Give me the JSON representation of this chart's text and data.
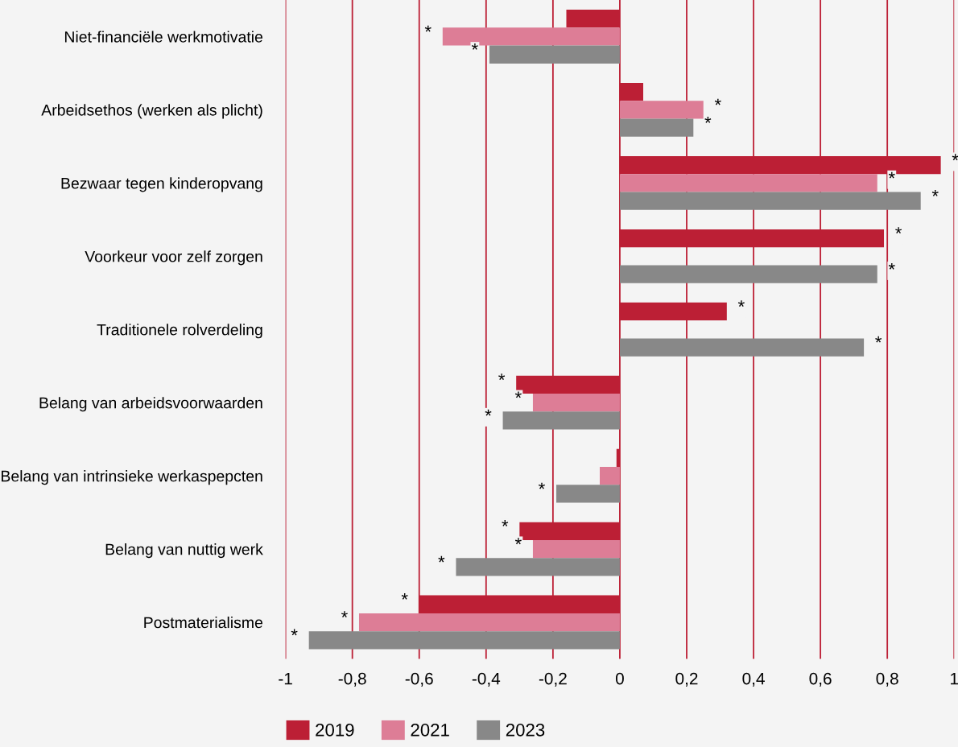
{
  "chart_data": {
    "type": "bar",
    "orientation": "horizontal",
    "categories": [
      "Niet-financiële werkmotivatie",
      "Arbeidsethos (werken als plicht)",
      "Bezwaar tegen kinderopvang",
      "Voorkeur voor zelf zorgen",
      "Traditionele rolverdeling",
      "Belang van arbeidsvoorwaarden",
      "Belang van intrinsieke werkaspepcten",
      "Belang van nuttig werk",
      "Postmaterialisme"
    ],
    "series": [
      {
        "name": "2019",
        "color": "#bc1f35",
        "values": [
          -0.16,
          0.07,
          0.96,
          0.79,
          0.32,
          -0.31,
          -0.01,
          -0.3,
          -0.6
        ],
        "value_labels": [
          null,
          null,
          "*",
          "*",
          "*",
          "*",
          null,
          "*",
          "*"
        ]
      },
      {
        "name": "2021",
        "color": "#dd7d96",
        "values": [
          -0.53,
          0.25,
          0.77,
          null,
          null,
          -0.26,
          -0.06,
          -0.26,
          -0.78
        ],
        "value_labels": [
          "*",
          "*",
          "*",
          null,
          null,
          "*",
          null,
          "*",
          "*"
        ]
      },
      {
        "name": "2023",
        "color": "#888888",
        "values": [
          -0.39,
          0.22,
          0.9,
          0.77,
          0.73,
          -0.35,
          -0.19,
          -0.49,
          -0.93
        ],
        "value_labels": [
          "*",
          "*",
          "*",
          "*",
          "*",
          "*",
          "*",
          "*",
          "*"
        ]
      }
    ],
    "xlim": [
      -1,
      1
    ],
    "xticks": [
      {
        "value": -1,
        "label": "-1"
      },
      {
        "value": -0.8,
        "label": "-0,8"
      },
      {
        "value": -0.6,
        "label": "-0,6"
      },
      {
        "value": -0.4,
        "label": "-0,4"
      },
      {
        "value": -0.2,
        "label": "-0,2"
      },
      {
        "value": 0,
        "label": "0"
      },
      {
        "value": 0.2,
        "label": "0,2"
      },
      {
        "value": 0.4,
        "label": "0,4"
      },
      {
        "value": 0.6,
        "label": "0,6"
      },
      {
        "value": 0.8,
        "label": "0,8"
      },
      {
        "value": 1,
        "label": "1"
      }
    ],
    "grid": "x",
    "legend": "bottom left"
  }
}
